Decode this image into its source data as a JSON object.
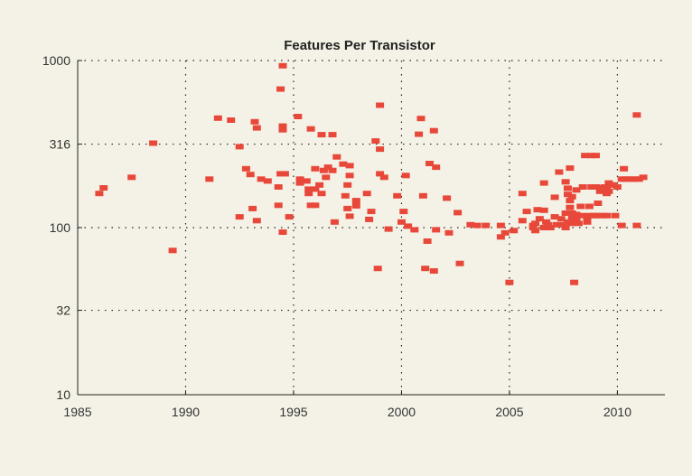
{
  "chart_data": {
    "type": "scatter",
    "title": "Features Per Transistor",
    "xlabel": "",
    "ylabel": "",
    "x_scale": "linear",
    "y_scale": "log",
    "xlim": [
      1985,
      2012.2
    ],
    "ylim": [
      10,
      1000
    ],
    "x_ticks": [
      1985,
      1990,
      1995,
      2000,
      2005,
      2010
    ],
    "y_ticks": [
      10,
      32,
      100,
      316,
      1000
    ],
    "grid": true,
    "marker_color": "#e8483a",
    "series": [
      {
        "name": "",
        "points": [
          [
            1986.0,
            160
          ],
          [
            1986.2,
            173
          ],
          [
            1987.5,
            200
          ],
          [
            1988.5,
            320
          ],
          [
            1989.4,
            73
          ],
          [
            1991.1,
            195
          ],
          [
            1991.5,
            452
          ],
          [
            1992.1,
            440
          ],
          [
            1992.5,
            305
          ],
          [
            1992.5,
            116
          ],
          [
            1992.8,
            225
          ],
          [
            1993.0,
            208
          ],
          [
            1993.1,
            130
          ],
          [
            1993.2,
            430
          ],
          [
            1993.3,
            395
          ],
          [
            1993.3,
            110
          ],
          [
            1993.5,
            195
          ],
          [
            1993.8,
            190
          ],
          [
            1994.3,
            175
          ],
          [
            1994.3,
            136
          ],
          [
            1994.4,
            675
          ],
          [
            1994.4,
            210
          ],
          [
            1994.5,
            405
          ],
          [
            1994.5,
            385
          ],
          [
            1994.5,
            94
          ],
          [
            1994.5,
            930
          ],
          [
            1994.6,
            210
          ],
          [
            1994.8,
            116
          ],
          [
            1995.2,
            462
          ],
          [
            1995.3,
            195
          ],
          [
            1995.3,
            185
          ],
          [
            1995.6,
            190
          ],
          [
            1995.7,
            170
          ],
          [
            1995.7,
            160
          ],
          [
            1995.8,
            390
          ],
          [
            1995.8,
            136
          ],
          [
            1996.0,
            225
          ],
          [
            1996.0,
            170
          ],
          [
            1996.0,
            136
          ],
          [
            1996.2,
            180
          ],
          [
            1996.3,
            360
          ],
          [
            1996.3,
            160
          ],
          [
            1996.4,
            220
          ],
          [
            1996.5,
            200
          ],
          [
            1996.6,
            230
          ],
          [
            1996.8,
            360
          ],
          [
            1996.8,
            220
          ],
          [
            1996.9,
            108
          ],
          [
            1997.0,
            265
          ],
          [
            1997.3,
            240
          ],
          [
            1997.4,
            155
          ],
          [
            1997.5,
            180
          ],
          [
            1997.5,
            130
          ],
          [
            1997.6,
            235
          ],
          [
            1997.6,
            205
          ],
          [
            1997.6,
            117
          ],
          [
            1997.9,
            145
          ],
          [
            1997.9,
            135
          ],
          [
            1998.4,
            160
          ],
          [
            1998.5,
            112
          ],
          [
            1998.6,
            125
          ],
          [
            1998.8,
            330
          ],
          [
            1998.9,
            57
          ],
          [
            1999.0,
            295
          ],
          [
            1999.0,
            210
          ],
          [
            1999.0,
            540
          ],
          [
            1999.2,
            200
          ],
          [
            1999.4,
            98
          ],
          [
            1999.8,
            155
          ],
          [
            2000.0,
            108
          ],
          [
            2000.1,
            125
          ],
          [
            2000.2,
            205
          ],
          [
            2000.3,
            102
          ],
          [
            2000.6,
            97
          ],
          [
            2000.8,
            362
          ],
          [
            2000.9,
            450
          ],
          [
            2001.0,
            155
          ],
          [
            2001.1,
            57
          ],
          [
            2001.2,
            83
          ],
          [
            2001.3,
            242
          ],
          [
            2001.5,
            55
          ],
          [
            2001.5,
            380
          ],
          [
            2001.6,
            230
          ],
          [
            2001.6,
            97
          ],
          [
            2002.1,
            150
          ],
          [
            2002.2,
            93
          ],
          [
            2002.6,
            123
          ],
          [
            2002.7,
            61
          ],
          [
            2003.2,
            104
          ],
          [
            2003.5,
            103
          ],
          [
            2003.9,
            103
          ],
          [
            2004.6,
            103
          ],
          [
            2004.6,
            88
          ],
          [
            2004.8,
            93
          ],
          [
            2005.0,
            47
          ],
          [
            2005.2,
            96
          ],
          [
            2005.6,
            110
          ],
          [
            2005.6,
            160
          ],
          [
            2005.8,
            125
          ],
          [
            2006.1,
            100
          ],
          [
            2006.1,
            103
          ],
          [
            2006.2,
            96
          ],
          [
            2006.2,
            106
          ],
          [
            2006.3,
            128
          ],
          [
            2006.4,
            113
          ],
          [
            2006.6,
            185
          ],
          [
            2006.6,
            127
          ],
          [
            2006.6,
            100
          ],
          [
            2006.7,
            108
          ],
          [
            2006.8,
            104
          ],
          [
            2006.9,
            100
          ],
          [
            2007.1,
            116
          ],
          [
            2007.1,
            152
          ],
          [
            2007.2,
            104
          ],
          [
            2007.3,
            215
          ],
          [
            2007.4,
            113
          ],
          [
            2007.5,
            104
          ],
          [
            2007.6,
            100
          ],
          [
            2007.6,
            122
          ],
          [
            2007.6,
            188
          ],
          [
            2007.7,
            108
          ],
          [
            2007.7,
            158
          ],
          [
            2007.7,
            172
          ],
          [
            2007.8,
            145
          ],
          [
            2007.8,
            132
          ],
          [
            2007.8,
            227
          ],
          [
            2007.9,
            153
          ],
          [
            2007.9,
            122
          ],
          [
            2007.9,
            114
          ],
          [
            2007.9,
            106
          ],
          [
            2008.0,
            47
          ],
          [
            2008.1,
            168
          ],
          [
            2008.1,
            120
          ],
          [
            2008.1,
            113
          ],
          [
            2008.2,
            106
          ],
          [
            2008.3,
            134
          ],
          [
            2008.4,
            175
          ],
          [
            2008.4,
            118
          ],
          [
            2008.5,
            270
          ],
          [
            2008.6,
            113
          ],
          [
            2008.6,
            108
          ],
          [
            2008.7,
            134
          ],
          [
            2008.7,
            118
          ],
          [
            2008.8,
            270
          ],
          [
            2008.8,
            175
          ],
          [
            2008.9,
            118
          ],
          [
            2009.0,
            270
          ],
          [
            2009.0,
            175
          ],
          [
            2009.1,
            140
          ],
          [
            2009.1,
            118
          ],
          [
            2009.2,
            173
          ],
          [
            2009.2,
            165
          ],
          [
            2009.3,
            118
          ],
          [
            2009.4,
            175
          ],
          [
            2009.5,
            170
          ],
          [
            2009.5,
            160
          ],
          [
            2009.5,
            118
          ],
          [
            2009.6,
            185
          ],
          [
            2009.6,
            165
          ],
          [
            2009.7,
            180
          ],
          [
            2009.8,
            180
          ],
          [
            2009.9,
            118
          ],
          [
            2010.0,
            175
          ],
          [
            2010.2,
            195
          ],
          [
            2010.2,
            103
          ],
          [
            2010.3,
            225
          ],
          [
            2010.4,
            195
          ],
          [
            2010.6,
            195
          ],
          [
            2010.8,
            195
          ],
          [
            2010.9,
            103
          ],
          [
            2010.9,
            472
          ],
          [
            2011.0,
            195
          ],
          [
            2011.2,
            200
          ]
        ]
      }
    ]
  }
}
